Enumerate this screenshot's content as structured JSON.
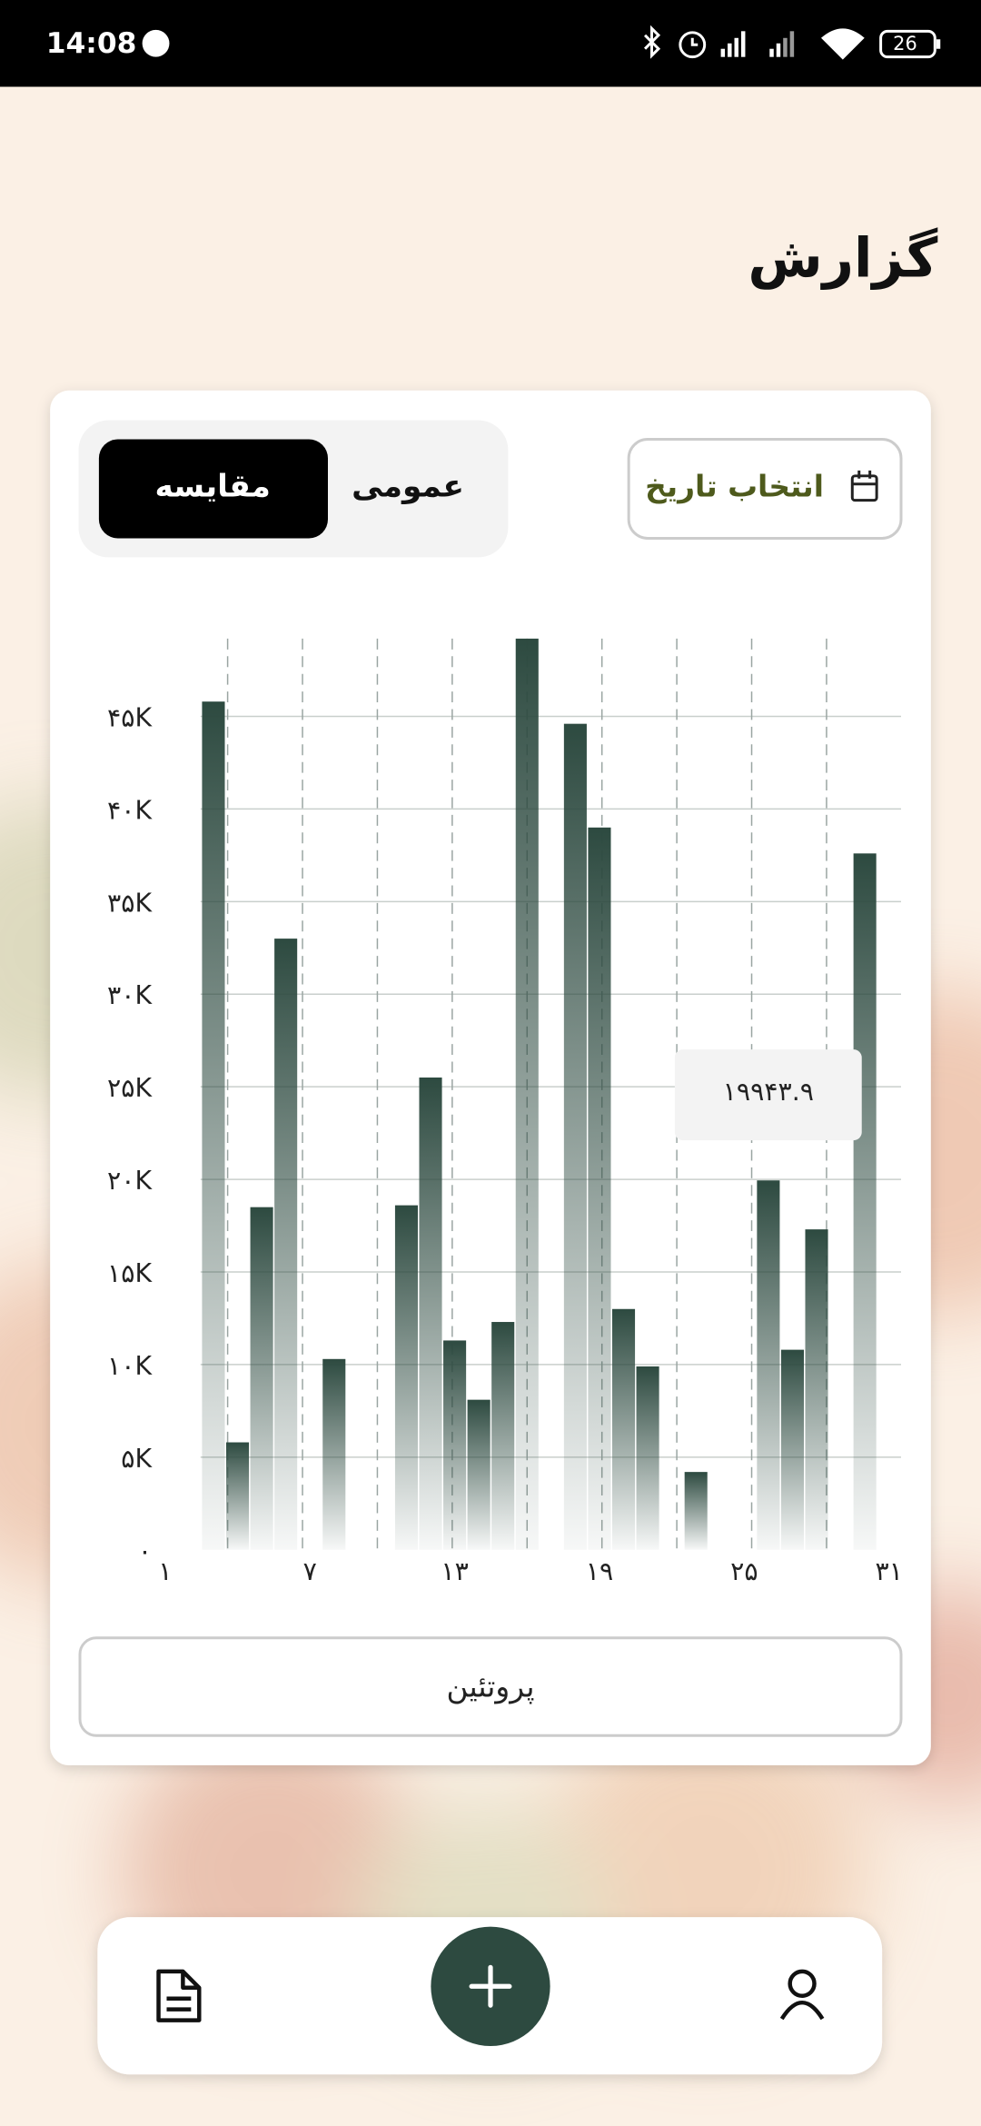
{
  "status": {
    "time": "14:08",
    "battery": "26"
  },
  "header": {
    "title": "گزارش"
  },
  "controls": {
    "date_button": "انتخاب تاریخ",
    "tabs": [
      "عمومی",
      "مقایسه"
    ]
  },
  "chart_data": {
    "type": "bar",
    "color": "#2d4a40",
    "grid": true,
    "categories": [
      "۱",
      null,
      null,
      null,
      null,
      null,
      "۷",
      null,
      null,
      null,
      null,
      null,
      "۱۳",
      null,
      null,
      null,
      null,
      null,
      "۱۹",
      null,
      null,
      null,
      null,
      null,
      "۲۵",
      null,
      null,
      null,
      null,
      null,
      "۳۱"
    ],
    "values": [
      null,
      null,
      45800,
      5800,
      18500,
      33000,
      null,
      10300,
      null,
      null,
      18600,
      25500,
      11300,
      8100,
      12300,
      49200,
      null,
      44600,
      39000,
      13000,
      9900,
      null,
      4200,
      null,
      null,
      19943.9,
      10800,
      17300,
      null,
      37600,
      null
    ],
    "ylim": [
      0,
      49200
    ],
    "yticks": [
      {
        "value": 0,
        "label": "۰"
      },
      {
        "value": 5000,
        "label": "۵K"
      },
      {
        "value": 10000,
        "label": "۱۰K"
      },
      {
        "value": 15000,
        "label": "۱۵K"
      },
      {
        "value": 20000,
        "label": "۲۰K"
      },
      {
        "value": 25000,
        "label": "۲۵K"
      },
      {
        "value": 30000,
        "label": "۳۰K"
      },
      {
        "value": 35000,
        "label": "۳۵K"
      },
      {
        "value": 40000,
        "label": "۴۰K"
      },
      {
        "value": 45000,
        "label": "۴۵K"
      }
    ],
    "tooltip": "۱۹۹۴۳.۹"
  },
  "nutrient_button": "پروتئین"
}
